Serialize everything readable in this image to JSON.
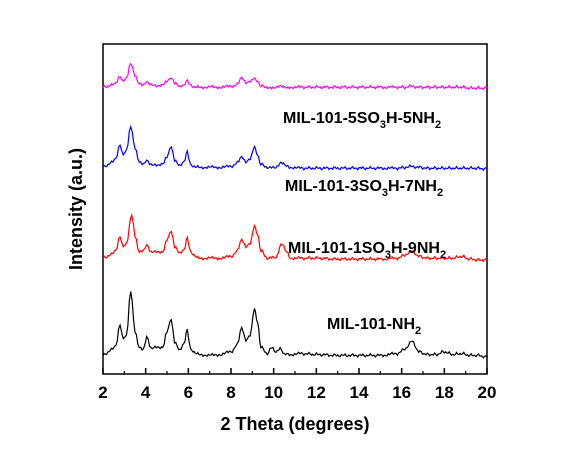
{
  "chart_data": {
    "type": "line",
    "xlabel": "2 Theta (degrees)",
    "ylabel": "Intensity (a.u.)",
    "xlim": [
      2,
      20
    ],
    "xticks": [
      "2",
      "4",
      "6",
      "8",
      "10",
      "12",
      "14",
      "16",
      "18",
      "20"
    ],
    "yticks_shown": false,
    "legend": "inline labels to the right of each trace",
    "series": [
      {
        "name_parts": [
          "MIL-101-NH",
          "2",
          ""
        ],
        "color": "#000000",
        "baseline": 0,
        "x": [
          2.0,
          2.4,
          2.6,
          2.8,
          2.95,
          3.1,
          3.3,
          3.5,
          3.7,
          3.9,
          4.05,
          4.25,
          4.5,
          4.8,
          5.0,
          5.2,
          5.35,
          5.6,
          5.8,
          5.95,
          6.1,
          6.5,
          7.0,
          7.5,
          8.0,
          8.3,
          8.5,
          8.7,
          8.9,
          9.1,
          9.25,
          9.4,
          9.7,
          9.9,
          10.1,
          10.3,
          10.5,
          10.8,
          11.3,
          12.0,
          13.0,
          14.0,
          15.0,
          15.8,
          16.2,
          16.5,
          16.8,
          17.2,
          17.6,
          18.0,
          18.4,
          18.8,
          19.2,
          19.6,
          20.0
        ],
        "values": [
          0.04,
          0.1,
          0.14,
          0.38,
          0.22,
          0.26,
          0.75,
          0.3,
          0.12,
          0.1,
          0.24,
          0.11,
          0.14,
          0.12,
          0.3,
          0.44,
          0.18,
          0.1,
          0.18,
          0.32,
          0.1,
          0.05,
          0.04,
          0.05,
          0.08,
          0.16,
          0.34,
          0.2,
          0.26,
          0.56,
          0.4,
          0.13,
          0.06,
          0.14,
          0.08,
          0.12,
          0.05,
          0.05,
          0.06,
          0.05,
          0.04,
          0.04,
          0.04,
          0.06,
          0.12,
          0.2,
          0.08,
          0.05,
          0.05,
          0.08,
          0.05,
          0.06,
          0.04,
          0.04,
          0.02
        ]
      },
      {
        "name_parts": [
          "MIL-101-1SO",
          "3",
          "H-9NH",
          "2"
        ],
        "color": "#ff0000",
        "baseline": 1.08,
        "x": [
          2.0,
          2.4,
          2.6,
          2.8,
          2.95,
          3.1,
          3.35,
          3.5,
          3.7,
          3.9,
          4.05,
          4.25,
          4.5,
          4.8,
          5.0,
          5.2,
          5.35,
          5.6,
          5.8,
          5.95,
          6.1,
          6.5,
          7.0,
          7.5,
          8.0,
          8.3,
          8.5,
          8.7,
          8.9,
          9.1,
          9.25,
          9.4,
          9.7,
          9.9,
          10.1,
          10.4,
          10.6,
          10.8,
          11.3,
          12.0,
          13.0,
          14.0,
          15.0,
          15.8,
          16.2,
          16.5,
          16.8,
          17.2,
          17.6,
          18.0,
          18.4,
          18.8,
          19.2,
          19.6,
          20.0
        ],
        "values": [
          0.04,
          0.08,
          0.12,
          0.28,
          0.16,
          0.2,
          0.52,
          0.28,
          0.1,
          0.12,
          0.18,
          0.1,
          0.12,
          0.1,
          0.24,
          0.34,
          0.16,
          0.1,
          0.14,
          0.26,
          0.1,
          0.04,
          0.04,
          0.04,
          0.06,
          0.12,
          0.24,
          0.16,
          0.2,
          0.4,
          0.3,
          0.12,
          0.04,
          0.06,
          0.05,
          0.2,
          0.12,
          0.04,
          0.04,
          0.04,
          0.03,
          0.03,
          0.03,
          0.04,
          0.08,
          0.12,
          0.06,
          0.04,
          0.04,
          0.04,
          0.04,
          0.06,
          0.03,
          0.02,
          0.02
        ]
      },
      {
        "name_parts": [
          "MIL-101-3SO",
          "3",
          "H-7NH",
          "2"
        ],
        "color": "#0000ff",
        "baseline": 2.1,
        "x": [
          2.0,
          2.4,
          2.6,
          2.8,
          2.95,
          3.1,
          3.3,
          3.5,
          3.7,
          3.9,
          4.05,
          4.25,
          4.5,
          4.8,
          5.0,
          5.2,
          5.35,
          5.6,
          5.8,
          5.95,
          6.1,
          6.5,
          7.0,
          7.5,
          8.0,
          8.3,
          8.5,
          8.7,
          8.9,
          9.1,
          9.25,
          9.4,
          9.7,
          9.9,
          10.1,
          10.4,
          10.6,
          10.8,
          11.3,
          12.0,
          13.0,
          14.0,
          15.0,
          15.8,
          16.2,
          16.5,
          16.8,
          17.2,
          17.6,
          18.0,
          18.4,
          18.8,
          19.2,
          19.6,
          20.0
        ],
        "values": [
          0.03,
          0.08,
          0.12,
          0.28,
          0.16,
          0.22,
          0.48,
          0.24,
          0.08,
          0.06,
          0.1,
          0.05,
          0.06,
          0.06,
          0.14,
          0.26,
          0.1,
          0.05,
          0.1,
          0.2,
          0.05,
          0.03,
          0.03,
          0.03,
          0.04,
          0.08,
          0.14,
          0.08,
          0.12,
          0.26,
          0.16,
          0.06,
          0.03,
          0.04,
          0.03,
          0.08,
          0.05,
          0.03,
          0.02,
          0.02,
          0.02,
          0.02,
          0.02,
          0.02,
          0.03,
          0.04,
          0.03,
          0.02,
          0.02,
          0.02,
          0.02,
          0.02,
          0.02,
          0.02,
          0.01
        ]
      },
      {
        "name_parts": [
          "MIL-101-5SO",
          "3",
          "H-5NH",
          "2"
        ],
        "color": "#ff00ff",
        "baseline": 3.0,
        "x": [
          2.0,
          2.4,
          2.6,
          2.8,
          2.95,
          3.1,
          3.3,
          3.5,
          3.7,
          3.9,
          4.05,
          4.25,
          4.5,
          4.8,
          5.0,
          5.2,
          5.35,
          5.6,
          5.8,
          5.95,
          6.1,
          6.5,
          7.0,
          7.5,
          8.0,
          8.3,
          8.5,
          8.7,
          8.9,
          9.1,
          9.25,
          9.4,
          9.7,
          9.9,
          10.1,
          10.4,
          10.6,
          10.8,
          11.3,
          12.0,
          13.0,
          14.0,
          15.0,
          15.8,
          16.2,
          16.5,
          16.8,
          17.2,
          17.6,
          18.0,
          18.4,
          18.8,
          19.2,
          19.6,
          20.0
        ],
        "values": [
          0.02,
          0.04,
          0.06,
          0.14,
          0.08,
          0.12,
          0.28,
          0.14,
          0.05,
          0.04,
          0.07,
          0.04,
          0.04,
          0.04,
          0.08,
          0.12,
          0.06,
          0.03,
          0.05,
          0.09,
          0.03,
          0.02,
          0.02,
          0.02,
          0.03,
          0.05,
          0.12,
          0.06,
          0.08,
          0.12,
          0.08,
          0.03,
          0.02,
          0.02,
          0.02,
          0.03,
          0.02,
          0.02,
          0.02,
          0.02,
          0.02,
          0.02,
          0.02,
          0.02,
          0.02,
          0.03,
          0.02,
          0.02,
          0.02,
          0.02,
          0.02,
          0.02,
          0.01,
          0.01,
          0.01
        ]
      }
    ]
  }
}
